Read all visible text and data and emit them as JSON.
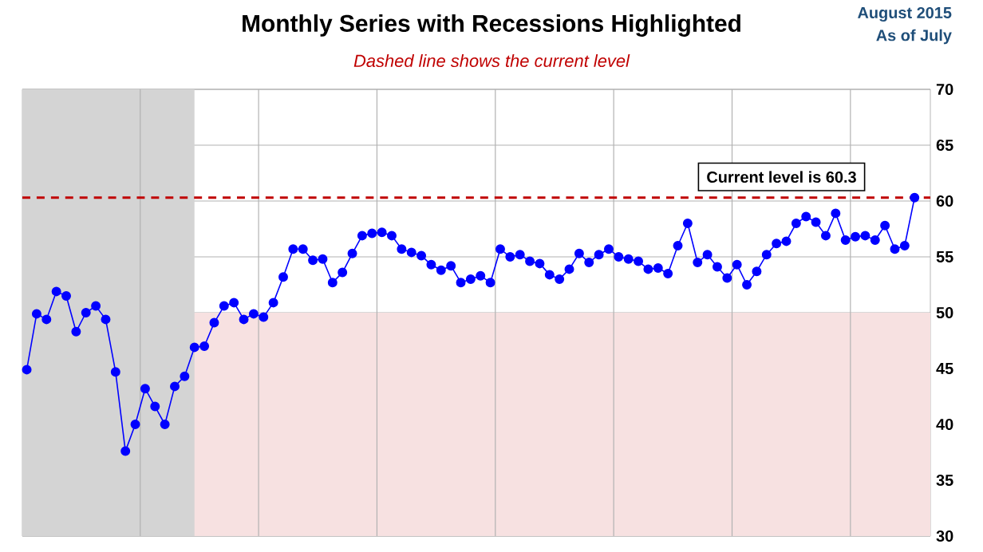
{
  "chart_data": {
    "type": "line",
    "title": "Monthly Series with Recessions Highlighted",
    "subtitle": "Dashed line shows the current level",
    "annotations": [
      "August 2015",
      "As of July"
    ],
    "categories": [
      null,
      null,
      null,
      null,
      null,
      null,
      null,
      null,
      null,
      null,
      null,
      null,
      null,
      null,
      null,
      null,
      null,
      null,
      null,
      null,
      null,
      null,
      null,
      null,
      null,
      null,
      null,
      null,
      null,
      null,
      null,
      null,
      null,
      null,
      null,
      null,
      null,
      null,
      null,
      null,
      null,
      null,
      null,
      null,
      null,
      null,
      null,
      null,
      null,
      null,
      null,
      null,
      null,
      null,
      null,
      null,
      null,
      null,
      null,
      null,
      null,
      null,
      null,
      null,
      null,
      null,
      null,
      null,
      null,
      null,
      null,
      null,
      null,
      null,
      null,
      null,
      null,
      null,
      null,
      null,
      null,
      null,
      null,
      null,
      null,
      null,
      null,
      null,
      null,
      null,
      null
    ],
    "series": [
      {
        "color": "#0000ff",
        "values": [
          44.9,
          49.9,
          49.4,
          51.9,
          51.5,
          48.3,
          50.0,
          50.6,
          49.4,
          44.7,
          37.6,
          40.0,
          43.2,
          41.6,
          40.0,
          43.4,
          44.3,
          46.9,
          47.0,
          49.1,
          50.6,
          50.9,
          49.4,
          49.9,
          49.6,
          50.9,
          53.2,
          55.7,
          55.7,
          54.7,
          54.8,
          52.7,
          53.6,
          55.3,
          56.9,
          57.1,
          57.2,
          56.9,
          55.7,
          55.4,
          55.1,
          54.3,
          53.8,
          54.2,
          52.7,
          53.0,
          53.3,
          52.7,
          55.7,
          55.0,
          55.2,
          54.6,
          54.4,
          53.4,
          53.0,
          53.9,
          55.3,
          54.5,
          55.2,
          55.7,
          55.0,
          54.8,
          54.6,
          53.9,
          54.0,
          53.5,
          56.0,
          58.0,
          54.5,
          55.2,
          54.1,
          53.1,
          54.3,
          52.5,
          53.7,
          55.2,
          56.2,
          56.4,
          58.0,
          58.6,
          58.1,
          56.9,
          58.9,
          56.5,
          56.8,
          56.9,
          56.5,
          57.8,
          55.7,
          56.0,
          60.3
        ]
      }
    ],
    "marker": "circle",
    "line_style": "solid",
    "ylim": [
      30,
      70
    ],
    "yticks": [
      30,
      35,
      40,
      45,
      50,
      55,
      60,
      65,
      70
    ],
    "grid": true,
    "ref_lines": [
      {
        "axis": "y",
        "value": 60.3,
        "label": "Current level is 60.3",
        "color": "#c00000",
        "line_style": "dashed"
      }
    ],
    "bands": [
      {
        "axis": "y",
        "from": 30,
        "to": 50,
        "color": "#f7e1e1"
      }
    ]
  }
}
